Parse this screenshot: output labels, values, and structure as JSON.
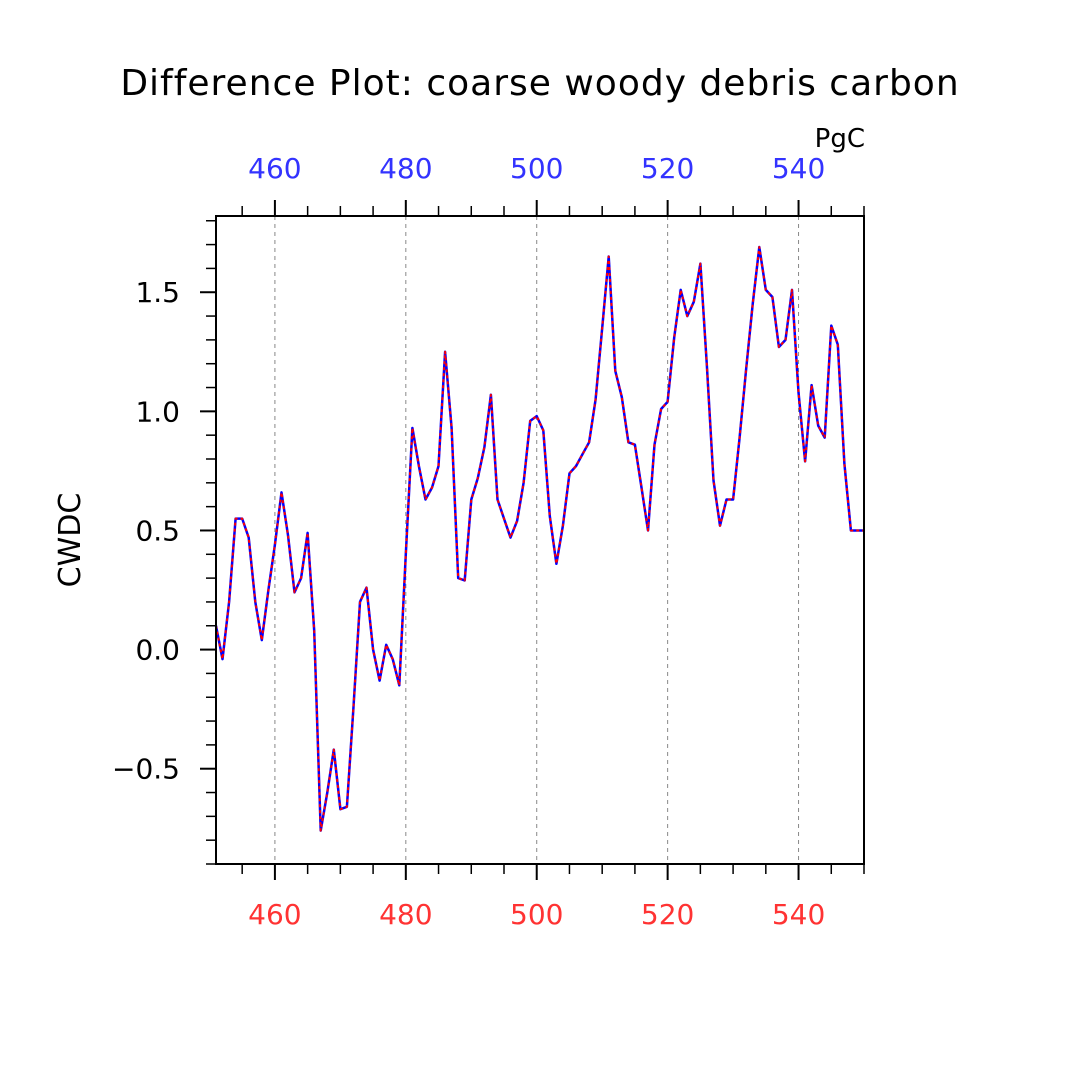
{
  "chart_data": {
    "type": "line",
    "title": "Difference Plot: coarse woody debris carbon",
    "ylabel": "CWDC",
    "units": "PgC",
    "xlim": [
      451,
      550
    ],
    "ylim": [
      -0.9,
      1.82
    ],
    "x_ticks": [
      460,
      480,
      500,
      520,
      540
    ],
    "x_tick_labels": [
      "460",
      "480",
      "500",
      "520",
      "540"
    ],
    "y_ticks": [
      -0.5,
      0.0,
      0.5,
      1.0,
      1.5
    ],
    "y_tick_labels": [
      "−0.5",
      "0.0",
      "0.5",
      "1.0",
      "1.5"
    ],
    "grid": "vertical dashed",
    "colors": {
      "series_a": "#0000ff",
      "series_b": "#ff0000",
      "bottom_ticks": "#ff3333",
      "top_ticks": "#3333ff",
      "grid": "#888888"
    },
    "x": [
      451,
      452,
      453,
      454,
      455,
      456,
      457,
      458,
      459,
      460,
      461,
      462,
      463,
      464,
      465,
      466,
      467,
      468,
      469,
      470,
      471,
      472,
      473,
      474,
      475,
      476,
      477,
      478,
      479,
      480,
      481,
      482,
      483,
      484,
      485,
      486,
      487,
      488,
      489,
      490,
      491,
      492,
      493,
      494,
      495,
      496,
      497,
      498,
      499,
      500,
      501,
      502,
      503,
      504,
      505,
      506,
      507,
      508,
      509,
      510,
      511,
      512,
      513,
      514,
      515,
      516,
      517,
      518,
      519,
      520,
      521,
      522,
      523,
      524,
      525,
      526,
      527,
      528,
      529,
      530,
      531,
      532,
      533,
      534,
      535,
      536,
      537,
      538,
      539,
      540,
      541,
      542,
      543,
      544,
      545,
      546,
      547,
      548,
      549,
      550
    ],
    "series": [
      {
        "values": [
          0.1,
          -0.04,
          0.2,
          0.55,
          0.55,
          0.47,
          0.2,
          0.04,
          0.25,
          0.44,
          0.66,
          0.48,
          0.24,
          0.3,
          0.49,
          0.08,
          -0.76,
          -0.6,
          -0.42,
          -0.67,
          -0.66,
          -0.24,
          0.2,
          0.26,
          0.0,
          -0.13,
          0.02,
          -0.04,
          -0.15,
          0.4,
          0.93,
          0.77,
          0.63,
          0.68,
          0.77,
          1.25,
          0.93,
          0.3,
          0.29,
          0.63,
          0.72,
          0.85,
          1.07,
          0.63,
          0.55,
          0.47,
          0.54,
          0.7,
          0.96,
          0.98,
          0.92,
          0.56,
          0.36,
          0.52,
          0.74,
          0.77,
          0.82,
          0.87,
          1.05,
          1.35,
          1.65,
          1.17,
          1.06,
          0.87,
          0.86,
          0.68,
          0.5,
          0.86,
          1.01,
          1.04,
          1.31,
          1.51,
          1.4,
          1.46,
          1.62,
          1.19,
          0.71,
          0.52,
          0.63,
          0.63,
          0.89,
          1.18,
          1.45,
          1.69,
          1.51,
          1.48,
          1.27,
          1.3,
          1.51,
          1.08,
          0.79,
          1.11,
          0.94,
          0.89,
          1.36,
          1.28,
          0.78,
          0.5,
          0.5,
          0.5
        ]
      },
      {
        "values": [
          0.1,
          -0.04,
          0.2,
          0.55,
          0.55,
          0.47,
          0.2,
          0.04,
          0.25,
          0.44,
          0.66,
          0.48,
          0.24,
          0.3,
          0.49,
          0.08,
          -0.76,
          -0.6,
          -0.42,
          -0.67,
          -0.66,
          -0.24,
          0.2,
          0.26,
          0.0,
          -0.13,
          0.02,
          -0.04,
          -0.15,
          0.4,
          0.93,
          0.77,
          0.63,
          0.68,
          0.77,
          1.25,
          0.93,
          0.3,
          0.29,
          0.63,
          0.72,
          0.85,
          1.07,
          0.63,
          0.55,
          0.47,
          0.54,
          0.7,
          0.96,
          0.98,
          0.92,
          0.56,
          0.36,
          0.52,
          0.74,
          0.77,
          0.82,
          0.87,
          1.05,
          1.35,
          1.65,
          1.17,
          1.06,
          0.87,
          0.86,
          0.68,
          0.5,
          0.86,
          1.01,
          1.04,
          1.31,
          1.51,
          1.4,
          1.46,
          1.62,
          1.19,
          0.71,
          0.52,
          0.63,
          0.63,
          0.89,
          1.18,
          1.45,
          1.69,
          1.51,
          1.48,
          1.27,
          1.3,
          1.51,
          1.08,
          0.79,
          1.11,
          0.94,
          0.89,
          1.36,
          1.28,
          0.78,
          0.5,
          0.5,
          0.5
        ]
      }
    ]
  }
}
